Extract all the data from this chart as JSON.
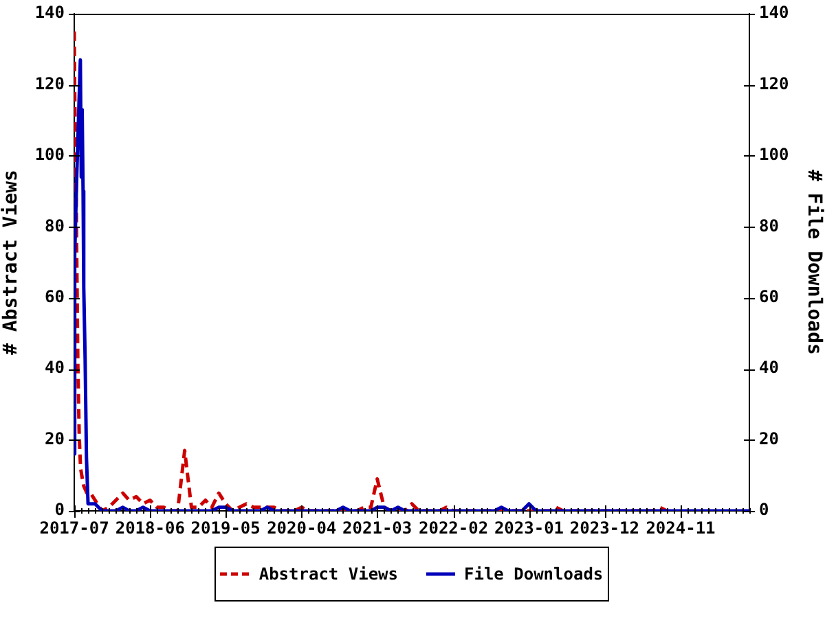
{
  "chart_data": {
    "type": "line",
    "ylabel": "# Abstract Views",
    "y2label": "# File Downloads",
    "xlim": [
      "2017-07",
      "2025-09"
    ],
    "xticks": [
      "2017-07",
      {
        "value": "2017-08",
        "label": null
      },
      {
        "value": "2017-09",
        "label": null
      },
      {
        "value": "2017-10",
        "label": null
      },
      {
        "value": "2017-11",
        "label": null
      },
      {
        "value": "2017-12",
        "label": null
      },
      {
        "value": "2018-01",
        "label": null
      },
      {
        "value": "2018-02",
        "label": null
      },
      {
        "value": "2018-03",
        "label": null
      },
      {
        "value": "2018-04",
        "label": null
      },
      {
        "value": "2018-05",
        "label": null
      },
      "2018-06",
      {
        "value": "2018-07",
        "label": null
      },
      {
        "value": "2018-08",
        "label": null
      },
      {
        "value": "2018-09",
        "label": null
      },
      {
        "value": "2018-10",
        "label": null
      },
      {
        "value": "2018-11",
        "label": null
      },
      {
        "value": "2018-12",
        "label": null
      },
      {
        "value": "2019-01",
        "label": null
      },
      {
        "value": "2019-02",
        "label": null
      },
      {
        "value": "2019-03",
        "label": null
      },
      {
        "value": "2019-04",
        "label": null
      },
      "2019-05",
      {
        "value": "2019-06",
        "label": null
      },
      {
        "value": "2019-07",
        "label": null
      },
      {
        "value": "2019-08",
        "label": null
      },
      {
        "value": "2019-09",
        "label": null
      },
      {
        "value": "2019-10",
        "label": null
      },
      {
        "value": "2019-11",
        "label": null
      },
      {
        "value": "2019-12",
        "label": null
      },
      {
        "value": "2020-01",
        "label": null
      },
      {
        "value": "2020-02",
        "label": null
      },
      {
        "value": "2020-03",
        "label": null
      },
      "2020-04",
      {
        "value": "2020-05",
        "label": null
      },
      {
        "value": "2020-06",
        "label": null
      },
      {
        "value": "2020-07",
        "label": null
      },
      {
        "value": "2020-08",
        "label": null
      },
      {
        "value": "2020-09",
        "label": null
      },
      {
        "value": "2020-10",
        "label": null
      },
      {
        "value": "2020-11",
        "label": null
      },
      {
        "value": "2020-12",
        "label": null
      },
      {
        "value": "2021-01",
        "label": null
      },
      {
        "value": "2021-02",
        "label": null
      },
      "2021-03",
      {
        "value": "2021-04",
        "label": null
      },
      {
        "value": "2021-05",
        "label": null
      },
      {
        "value": "2021-06",
        "label": null
      },
      {
        "value": "2021-07",
        "label": null
      },
      {
        "value": "2021-08",
        "label": null
      },
      {
        "value": "2021-09",
        "label": null
      },
      {
        "value": "2021-10",
        "label": null
      },
      {
        "value": "2021-11",
        "label": null
      },
      {
        "value": "2021-12",
        "label": null
      },
      {
        "value": "2022-01",
        "label": null
      },
      "2022-02",
      {
        "value": "2022-03",
        "label": null
      },
      {
        "value": "2022-04",
        "label": null
      },
      {
        "value": "2022-05",
        "label": null
      },
      {
        "value": "2022-06",
        "label": null
      },
      {
        "value": "2022-07",
        "label": null
      },
      {
        "value": "2022-08",
        "label": null
      },
      {
        "value": "2022-09",
        "label": null
      },
      {
        "value": "2022-10",
        "label": null
      },
      {
        "value": "2022-11",
        "label": null
      },
      {
        "value": "2022-12",
        "label": null
      },
      "2023-01",
      {
        "value": "2023-02",
        "label": null
      },
      {
        "value": "2023-03",
        "label": null
      },
      {
        "value": "2023-04",
        "label": null
      },
      {
        "value": "2023-05",
        "label": null
      },
      {
        "value": "2023-06",
        "label": null
      },
      {
        "value": "2023-07",
        "label": null
      },
      {
        "value": "2023-08",
        "label": null
      },
      {
        "value": "2023-09",
        "label": null
      },
      {
        "value": "2023-10",
        "label": null
      },
      {
        "value": "2023-11",
        "label": null
      },
      "2023-12",
      {
        "value": "2024-01",
        "label": null
      },
      {
        "value": "2024-02",
        "label": null
      },
      {
        "value": "2024-03",
        "label": null
      },
      {
        "value": "2024-04",
        "label": null
      },
      {
        "value": "2024-05",
        "label": null
      },
      {
        "value": "2024-06",
        "label": null
      },
      {
        "value": "2024-07",
        "label": null
      },
      {
        "value": "2024-08",
        "label": null
      },
      {
        "value": "2024-09",
        "label": null
      },
      {
        "value": "2024-10",
        "label": null
      },
      "2024-11",
      {
        "value": "2024-12",
        "label": null
      },
      {
        "value": "2025-01",
        "label": null
      },
      {
        "value": "2025-02",
        "label": null
      },
      {
        "value": "2025-03",
        "label": null
      },
      {
        "value": "2025-04",
        "label": null
      },
      {
        "value": "2025-05",
        "label": null
      },
      {
        "value": "2025-06",
        "label": null
      },
      {
        "value": "2025-07",
        "label": null
      },
      {
        "value": "2025-08",
        "label": null
      },
      {
        "value": "2025-09",
        "label": null
      }
    ],
    "ylim": [
      0,
      140
    ],
    "yticks": [
      0,
      20,
      40,
      60,
      80,
      100,
      120,
      140
    ],
    "y2lim": [
      0,
      140
    ],
    "y2ticks": [
      0,
      20,
      40,
      60,
      80,
      100,
      120,
      140
    ],
    "legend": "bottom",
    "series": [
      {
        "name": "Abstract Views",
        "color": "#cc0000",
        "line_style": "dashed",
        "x": [
          "2017-07-01",
          "2017-07-03",
          "2017-07-09",
          "2017-07-13",
          "2017-07-17",
          "2017-07-23",
          "2017-07-29",
          "2017-08-06",
          "2017-08-12",
          "2017-08-26",
          "2017-09-11",
          "2017-10-11",
          "2017-11",
          "2017-12",
          "2018-01",
          "2018-02",
          "2018-03",
          "2018-04",
          "2018-05",
          "2018-06",
          "2018-07",
          "2018-08",
          "2018-09",
          "2018-10",
          "2018-11",
          "2018-12",
          "2019-01",
          "2019-02",
          "2019-03",
          "2019-04",
          "2019-05",
          "2019-06",
          "2019-07",
          "2019-08",
          "2019-09",
          "2019-10",
          "2019-11",
          "2019-12",
          "2020-01",
          "2020-02",
          "2020-03",
          "2020-04",
          "2020-05",
          "2020-06",
          "2020-07",
          "2020-08",
          "2020-09",
          "2020-10",
          "2020-11",
          "2020-12",
          "2021-01",
          "2021-02",
          "2021-03",
          "2021-04",
          "2021-05",
          "2021-06",
          "2021-07",
          "2021-08",
          "2021-09",
          "2021-10",
          "2021-11",
          "2021-12",
          "2022-01",
          "2022-02",
          "2022-03",
          "2022-04",
          "2022-05",
          "2022-06",
          "2022-07",
          "2022-08",
          "2022-09",
          "2022-10",
          "2022-11",
          "2022-12",
          "2023-01",
          "2023-02",
          "2023-03",
          "2023-04",
          "2023-05",
          "2023-06",
          "2023-07",
          "2023-08",
          "2023-09",
          "2023-10",
          "2023-11",
          "2023-12",
          "2024-01",
          "2024-02",
          "2024-03",
          "2024-04",
          "2024-05",
          "2024-06",
          "2024-07",
          "2024-08",
          "2024-09"
        ],
        "values": [
          135,
          118,
          92,
          66,
          41,
          21,
          12,
          9,
          7,
          5,
          5,
          2,
          0,
          1,
          3,
          5,
          3,
          4,
          2,
          3,
          1,
          1,
          0,
          0,
          17,
          1,
          1,
          3,
          1,
          5,
          2,
          0,
          1,
          2,
          1,
          1,
          1,
          1,
          0,
          0,
          0,
          1,
          0,
          0,
          0,
          0,
          0,
          0,
          0,
          0,
          1,
          1,
          9,
          1,
          0,
          0,
          0,
          2,
          0,
          0,
          0,
          0,
          1,
          0,
          0,
          0,
          0,
          0,
          0,
          0,
          0,
          0,
          0,
          0,
          0,
          0,
          0,
          0,
          1,
          0,
          0,
          0,
          0,
          0,
          0,
          0,
          0,
          0,
          0,
          0,
          0,
          0,
          0,
          1,
          0
        ]
      },
      {
        "name": "File Downloads",
        "color": "#0000bb",
        "line_style": "solid",
        "axis": "y2",
        "x": [
          "2017-07-01",
          "2017-07-02",
          "2017-07-04",
          "2017-07-12",
          "2017-07-22",
          "2017-07-28",
          "2017-08-01",
          "2017-08-05",
          "2017-08-09",
          "2017-08-12",
          "2017-08-18",
          "2017-08-24",
          "2017-08-31",
          "2017-10-01",
          "2017-11",
          "2017-12",
          "2018-01",
          "2018-02",
          "2018-03",
          "2018-04",
          "2018-05",
          "2018-06",
          "2018-07",
          "2018-08",
          "2018-09",
          "2018-10",
          "2018-11",
          "2018-12",
          "2019-01",
          "2019-02",
          "2019-03",
          "2019-04",
          "2019-05",
          "2019-06",
          "2019-07",
          "2019-08",
          "2019-09",
          "2019-10",
          "2019-11",
          "2019-12",
          "2020-01",
          "2020-02",
          "2020-03",
          "2020-04",
          "2020-05",
          "2020-06",
          "2020-07",
          "2020-08",
          "2020-09",
          "2020-10",
          "2020-11",
          "2020-12",
          "2021-01",
          "2021-02",
          "2021-03",
          "2021-04",
          "2021-05",
          "2021-06",
          "2021-07",
          "2021-08",
          "2021-09",
          "2021-10",
          "2021-11",
          "2021-12",
          "2022-01",
          "2022-02",
          "2022-03",
          "2022-04",
          "2022-05",
          "2022-06",
          "2022-07",
          "2022-08",
          "2022-09",
          "2022-10",
          "2022-11",
          "2022-12",
          "2023-01",
          "2023-02",
          "2023-03",
          "2023-04",
          "2023-05",
          "2023-06",
          "2023-07",
          "2023-08",
          "2023-09",
          "2023-10",
          "2023-11",
          "2023-12",
          "2024-01",
          "2024-02",
          "2024-03",
          "2024-04",
          "2024-05",
          "2024-06",
          "2024-07",
          "2024-08",
          "2024-09",
          "2024-10",
          "2024-11",
          "2024-12",
          "2025-01",
          "2025-02",
          "2025-03",
          "2025-04",
          "2025-05",
          "2025-06",
          "2025-07",
          "2025-08",
          "2025-09"
        ],
        "values": [
          27,
          16,
          72,
          94,
          115,
          127,
          94,
          113,
          90,
          63,
          43,
          15,
          2,
          2,
          0,
          0,
          0,
          1,
          0,
          0,
          1,
          0,
          0,
          0,
          0,
          0,
          0,
          0,
          0,
          0,
          0,
          1,
          1,
          0,
          0,
          0,
          0,
          0,
          1,
          0,
          0,
          0,
          0,
          0,
          0,
          0,
          0,
          0,
          0,
          1,
          0,
          0,
          0,
          0,
          1,
          1,
          0,
          1,
          0,
          0,
          0,
          0,
          0,
          0,
          0,
          0,
          0,
          0,
          0,
          0,
          0,
          0,
          1,
          0,
          0,
          0,
          2,
          0,
          0,
          0,
          0,
          0,
          0,
          0,
          0,
          0,
          0,
          0,
          0,
          0,
          0,
          0,
          0,
          0,
          0,
          0,
          0,
          0,
          0,
          0,
          0,
          0,
          0,
          0,
          0,
          0,
          0,
          0,
          0
        ]
      }
    ]
  }
}
